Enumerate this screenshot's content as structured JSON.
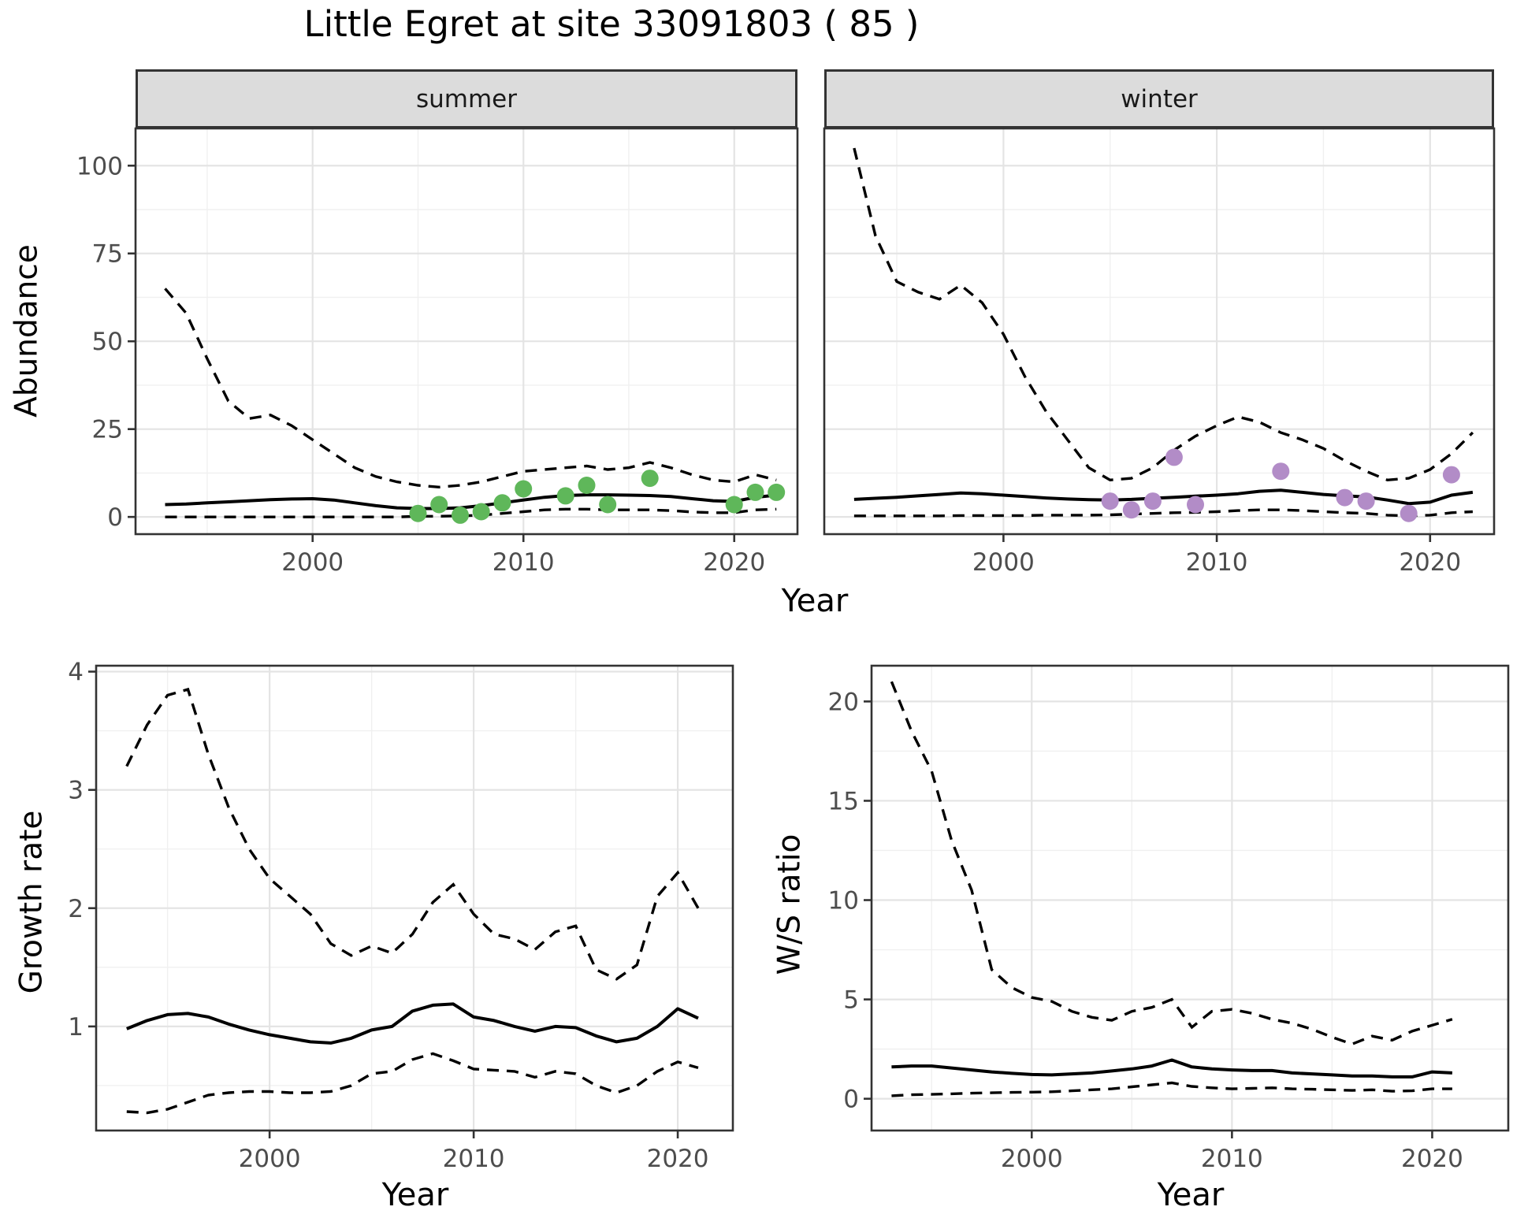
{
  "title": "Little Egret at site 33091803 ( 85 )",
  "colors": {
    "summer_point": "#5fb75a",
    "winter_point": "#b28cc7",
    "line": "#000000",
    "panel_border": "#333333",
    "strip_bg": "#dcdcdc",
    "grid_major": "#e4e4e4",
    "grid_minor": "#f0f0f0",
    "tick_label": "#4d4d4d",
    "background": "#ffffff"
  },
  "chart_data": [
    {
      "type": "line",
      "title": "Abundance by Year, faceted by season",
      "xlabel": "Year",
      "ylabel": "Abundance",
      "xticks": [
        2000,
        2010,
        2020
      ],
      "yticks": [
        0,
        25,
        50,
        75,
        100
      ],
      "xlim": [
        1991.6,
        2023.0
      ],
      "ylim": [
        -4.9,
        110.6
      ],
      "grid": true,
      "legend": "none",
      "years": [
        1993,
        1994,
        1995,
        1996,
        1997,
        1998,
        1999,
        2000,
        2001,
        2002,
        2003,
        2004,
        2005,
        2006,
        2007,
        2008,
        2009,
        2010,
        2011,
        2012,
        2013,
        2014,
        2015,
        2016,
        2017,
        2018,
        2019,
        2020,
        2021,
        2022
      ],
      "facets": [
        {
          "label": "summer",
          "point_color": "#5fb75a",
          "upper_ci": [
            65,
            58,
            45,
            33,
            28,
            29,
            26,
            22,
            18,
            14,
            11.5,
            10,
            9,
            8.5,
            9,
            10,
            11.5,
            13,
            13.5,
            14,
            14.5,
            13.5,
            14,
            15.5,
            14,
            12,
            10.5,
            10,
            12,
            10.5
          ],
          "mean": [
            3.5,
            3.7,
            4,
            4.3,
            4.6,
            4.9,
            5.1,
            5.2,
            4.8,
            4,
            3.2,
            2.6,
            2.4,
            2.4,
            2.6,
            3.2,
            4,
            4.8,
            5.6,
            6.1,
            6.3,
            6.3,
            6.2,
            6.1,
            5.8,
            5.2,
            4.6,
            4.4,
            5.6,
            6.2
          ],
          "lower_ci": [
            0,
            0,
            0,
            0,
            0,
            0,
            0,
            0,
            0,
            0,
            0,
            0,
            0.2,
            0.2,
            0.3,
            0.5,
            1,
            1.5,
            2,
            2.2,
            2.2,
            2,
            2,
            2,
            1.8,
            1.4,
            1.2,
            1.2,
            2,
            2.2
          ],
          "observed_points": [
            [
              2005,
              1
            ],
            [
              2006,
              3.5
            ],
            [
              2007,
              0.5
            ],
            [
              2008,
              1.5
            ],
            [
              2009,
              4
            ],
            [
              2010,
              8
            ],
            [
              2012,
              6
            ],
            [
              2013,
              9
            ],
            [
              2014,
              3.5
            ],
            [
              2016,
              11
            ],
            [
              2020,
              3.5
            ],
            [
              2021,
              7
            ],
            [
              2022,
              7
            ]
          ]
        },
        {
          "label": "winter",
          "point_color": "#b28cc7",
          "upper_ci": [
            105,
            80,
            67,
            64,
            62,
            66,
            61,
            52,
            40,
            30,
            22,
            14,
            10.5,
            11,
            14,
            19,
            23,
            26,
            28.5,
            27,
            24,
            22,
            19.5,
            16,
            13,
            10.5,
            11,
            13.5,
            18,
            24
          ],
          "mean": [
            5,
            5.3,
            5.6,
            6,
            6.4,
            6.8,
            6.6,
            6.2,
            5.8,
            5.4,
            5.1,
            4.9,
            4.8,
            5,
            5.3,
            5.6,
            5.9,
            6.2,
            6.6,
            7.3,
            7.6,
            7,
            6.4,
            6,
            5.7,
            4.8,
            3.8,
            4.2,
            6.2,
            7
          ],
          "lower_ci": [
            0.3,
            0.3,
            0.3,
            0.3,
            0.3,
            0.4,
            0.4,
            0.4,
            0.4,
            0.5,
            0.5,
            0.5,
            0.6,
            0.8,
            1,
            1.2,
            1.3,
            1.5,
            1.8,
            2,
            2,
            1.8,
            1.5,
            1.2,
            1,
            0.5,
            0.3,
            0.5,
            1.2,
            1.5
          ],
          "observed_points": [
            [
              2005,
              4.5
            ],
            [
              2006,
              2
            ],
            [
              2007,
              4.5
            ],
            [
              2008,
              17
            ],
            [
              2009,
              3.5
            ],
            [
              2013,
              13
            ],
            [
              2016,
              5.5
            ],
            [
              2017,
              4.5
            ],
            [
              2019,
              1
            ],
            [
              2021,
              12
            ]
          ]
        }
      ]
    },
    {
      "type": "line",
      "title": "Growth rate by Year",
      "xlabel": "Year",
      "ylabel": "Growth rate",
      "xticks": [
        2000,
        2010,
        2020
      ],
      "yticks": [
        1,
        2,
        3,
        4
      ],
      "xlim": [
        1991.5,
        2022.7
      ],
      "ylim": [
        0.12,
        4.05
      ],
      "grid": true,
      "legend": "none",
      "years": [
        1993,
        1994,
        1995,
        1996,
        1997,
        1998,
        1999,
        2000,
        2001,
        2002,
        2003,
        2004,
        2005,
        2006,
        2007,
        2008,
        2009,
        2010,
        2011,
        2012,
        2013,
        2014,
        2015,
        2016,
        2017,
        2018,
        2019,
        2020,
        2021
      ],
      "upper_ci": [
        3.2,
        3.55,
        3.8,
        3.85,
        3.3,
        2.85,
        2.5,
        2.25,
        2.1,
        1.95,
        1.7,
        1.6,
        1.68,
        1.62,
        1.78,
        2.05,
        2.2,
        1.95,
        1.78,
        1.74,
        1.65,
        1.8,
        1.85,
        1.48,
        1.4,
        1.52,
        2.1,
        2.3,
        2.0
      ],
      "mean": [
        0.98,
        1.05,
        1.1,
        1.11,
        1.08,
        1.02,
        0.97,
        0.93,
        0.9,
        0.87,
        0.86,
        0.9,
        0.97,
        1.0,
        1.13,
        1.18,
        1.19,
        1.08,
        1.05,
        1.0,
        0.96,
        1.0,
        0.99,
        0.92,
        0.87,
        0.9,
        1.0,
        1.15,
        1.07
      ],
      "lower_ci": [
        0.28,
        0.27,
        0.3,
        0.36,
        0.42,
        0.44,
        0.45,
        0.45,
        0.44,
        0.44,
        0.45,
        0.5,
        0.6,
        0.62,
        0.72,
        0.77,
        0.71,
        0.64,
        0.63,
        0.62,
        0.57,
        0.62,
        0.6,
        0.5,
        0.44,
        0.5,
        0.62,
        0.7,
        0.65
      ]
    },
    {
      "type": "line",
      "title": "W/S ratio by Year",
      "xlabel": "Year",
      "ylabel": "W/S ratio",
      "xticks": [
        2000,
        2010,
        2020
      ],
      "yticks": [
        0,
        5,
        10,
        15,
        20
      ],
      "xlim": [
        1992.0,
        2023.8
      ],
      "ylim": [
        -1.6,
        21.8
      ],
      "grid": true,
      "legend": "none",
      "years": [
        1993,
        1994,
        1995,
        1996,
        1997,
        1998,
        1999,
        2000,
        2001,
        2002,
        2003,
        2004,
        2005,
        2006,
        2007,
        2008,
        2009,
        2010,
        2011,
        2012,
        2013,
        2014,
        2015,
        2016,
        2017,
        2018,
        2019,
        2020,
        2021
      ],
      "upper_ci": [
        21,
        18.5,
        16.5,
        13,
        10.5,
        6.5,
        5.6,
        5.1,
        4.9,
        4.4,
        4.1,
        3.95,
        4.4,
        4.6,
        5.0,
        3.6,
        4.4,
        4.5,
        4.3,
        4.0,
        3.8,
        3.5,
        3.1,
        2.75,
        3.15,
        2.95,
        3.4,
        3.7,
        4.0
      ],
      "mean": [
        1.6,
        1.65,
        1.65,
        1.55,
        1.45,
        1.35,
        1.28,
        1.22,
        1.2,
        1.25,
        1.3,
        1.4,
        1.5,
        1.65,
        1.95,
        1.6,
        1.5,
        1.45,
        1.42,
        1.42,
        1.3,
        1.25,
        1.2,
        1.15,
        1.15,
        1.1,
        1.1,
        1.35,
        1.3
      ],
      "lower_ci": [
        0.15,
        0.2,
        0.22,
        0.25,
        0.28,
        0.3,
        0.32,
        0.33,
        0.35,
        0.4,
        0.45,
        0.5,
        0.6,
        0.7,
        0.8,
        0.62,
        0.55,
        0.5,
        0.52,
        0.55,
        0.5,
        0.48,
        0.45,
        0.42,
        0.45,
        0.38,
        0.4,
        0.5,
        0.5
      ]
    }
  ]
}
